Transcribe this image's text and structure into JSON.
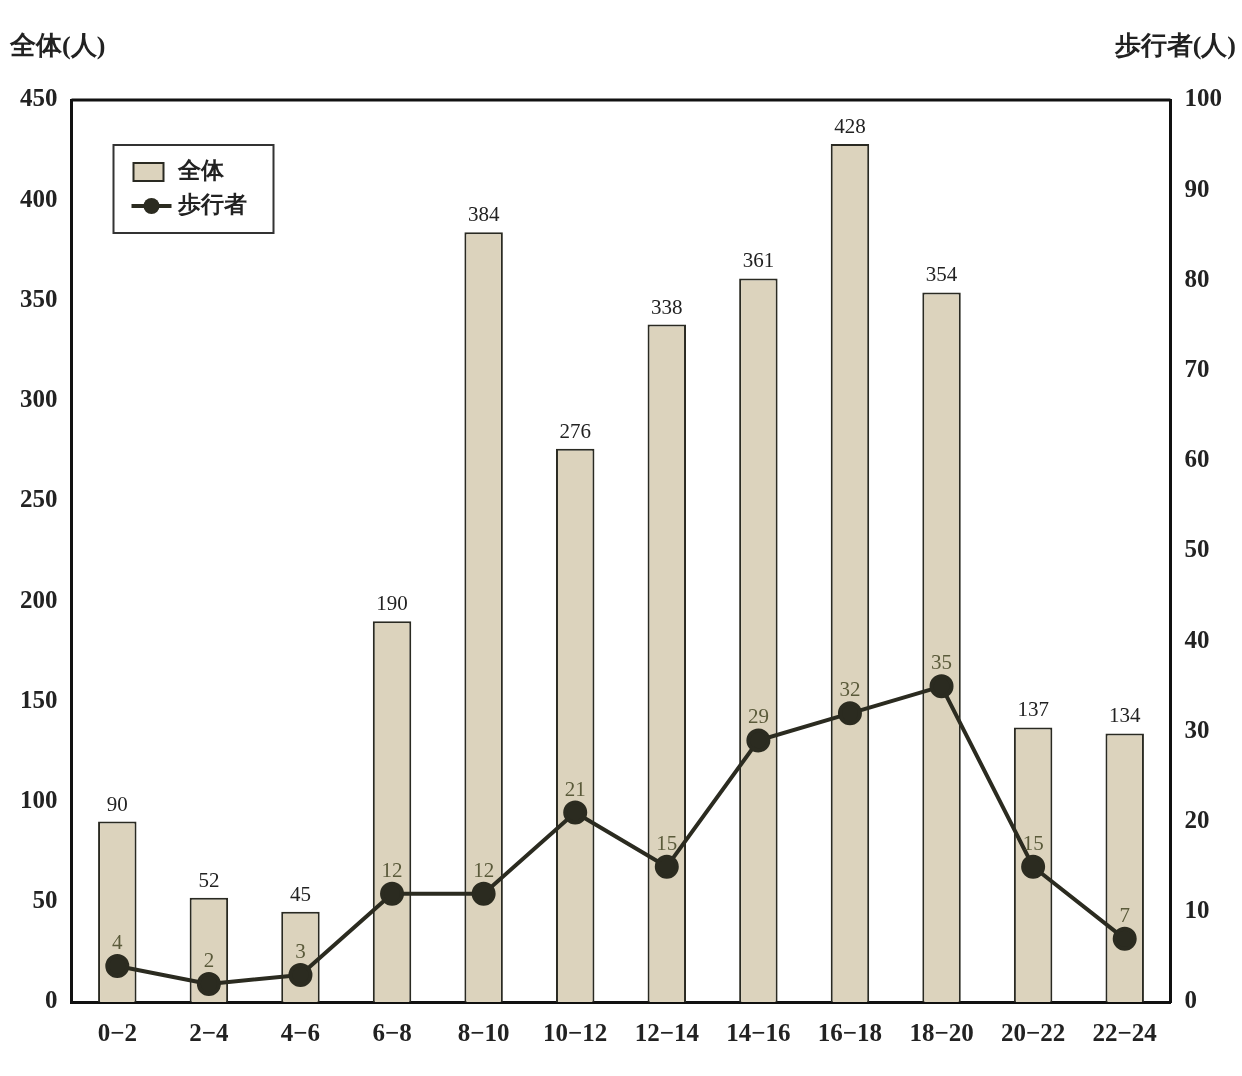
{
  "chart_data": {
    "type": "bar",
    "categories": [
      "0−2",
      "2−4",
      "4−6",
      "6−8",
      "8−10",
      "10−12",
      "12−14",
      "14−16",
      "16−18",
      "18−20",
      "20−22",
      "22−24"
    ],
    "ylabel": "全体(人)",
    "y2label": "歩行者(人)",
    "series": [
      {
        "name": "全体",
        "color": "#dcd3bd",
        "values": [
          90,
          52,
          45,
          190,
          384,
          276,
          338,
          361,
          428,
          354,
          137,
          134
        ]
      },
      {
        "name": "歩行者",
        "type": "line",
        "axis": "y2",
        "color": "#2b2b20",
        "values": [
          4,
          2,
          3,
          12,
          12,
          21,
          15,
          29,
          32,
          35,
          15,
          7
        ]
      }
    ],
    "ylim": [
      0,
      450
    ],
    "yticks": [
      0,
      50,
      100,
      150,
      200,
      250,
      300,
      350,
      400,
      450
    ],
    "y2lim": [
      0,
      100
    ],
    "y2ticks": [
      0,
      10,
      20,
      30,
      40,
      50,
      60,
      70,
      80,
      90,
      100
    ],
    "data_labels": true,
    "legend": "top left",
    "grid": false,
    "marker": "circle",
    "line_style": "solid"
  }
}
